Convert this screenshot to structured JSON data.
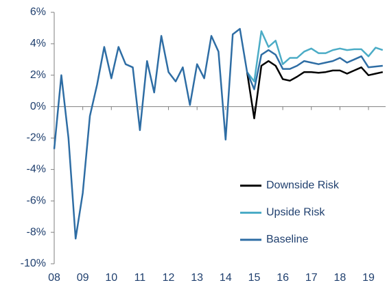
{
  "chart_data": {
    "type": "line",
    "x": [
      2008,
      2008.25,
      2008.5,
      2008.75,
      2009,
      2009.25,
      2009.5,
      2009.75,
      2010,
      2010.25,
      2010.5,
      2010.75,
      2011,
      2011.25,
      2011.5,
      2011.75,
      2012,
      2012.25,
      2012.5,
      2012.75,
      2013,
      2013.25,
      2013.5,
      2013.75,
      2014,
      2014.25,
      2014.5,
      2014.75,
      2015,
      2015.25,
      2015.5,
      2015.75,
      2016,
      2016.25,
      2016.5,
      2016.75,
      2017,
      2017.25,
      2017.5,
      2017.75,
      2018,
      2018.25,
      2018.5,
      2018.75,
      2019,
      2019.25,
      2019.5
    ],
    "series": [
      {
        "name": "Upside Risk",
        "color": "#4bacc6",
        "values": [
          null,
          null,
          null,
          null,
          null,
          null,
          null,
          null,
          null,
          null,
          null,
          null,
          null,
          null,
          null,
          null,
          null,
          null,
          null,
          null,
          null,
          null,
          null,
          null,
          null,
          null,
          null,
          2.2,
          1.6,
          4.8,
          3.8,
          4.2,
          2.7,
          3.1,
          3.1,
          3.5,
          3.7,
          3.4,
          3.4,
          3.6,
          3.7,
          3.6,
          3.65,
          3.65,
          3.2,
          3.75,
          3.6
        ]
      },
      {
        "name": "Downside Risk",
        "color": "#000000",
        "values": [
          null,
          null,
          null,
          null,
          null,
          null,
          null,
          null,
          null,
          null,
          null,
          null,
          null,
          null,
          null,
          null,
          null,
          null,
          null,
          null,
          null,
          null,
          null,
          null,
          null,
          null,
          null,
          2.2,
          -0.75,
          2.6,
          2.9,
          2.6,
          1.75,
          1.65,
          1.9,
          2.2,
          2.2,
          2.15,
          2.2,
          2.3,
          2.3,
          2.1,
          2.3,
          2.5,
          2.0,
          2.1,
          2.2
        ]
      },
      {
        "name": "Baseline",
        "color": "#2e6da4",
        "values": [
          -2.7,
          2.0,
          -2.0,
          -8.4,
          -5.5,
          -0.6,
          1.4,
          3.8,
          1.8,
          3.8,
          2.7,
          2.5,
          -1.5,
          2.9,
          0.9,
          4.5,
          2.2,
          1.6,
          2.5,
          0.1,
          2.7,
          1.8,
          4.5,
          3.5,
          -2.1,
          4.6,
          4.95,
          2.2,
          1.1,
          3.3,
          3.6,
          3.3,
          2.4,
          2.4,
          2.6,
          2.9,
          2.8,
          2.7,
          2.8,
          2.9,
          3.1,
          2.8,
          3.0,
          3.2,
          2.5,
          2.55,
          2.6
        ]
      }
    ],
    "legend_order": [
      "Downside Risk",
      "Upside Risk",
      "Baseline"
    ],
    "xlim": [
      2008,
      2019.6
    ],
    "xticks": [
      {
        "value": 2008,
        "label": "08"
      },
      {
        "value": 2009,
        "label": "09"
      },
      {
        "value": 2010,
        "label": "10"
      },
      {
        "value": 2011,
        "label": "11"
      },
      {
        "value": 2012,
        "label": "12"
      },
      {
        "value": 2013,
        "label": "13"
      },
      {
        "value": 2014,
        "label": "14"
      },
      {
        "value": 2015,
        "label": "15"
      },
      {
        "value": 2016,
        "label": "16"
      },
      {
        "value": 2017,
        "label": "17"
      },
      {
        "value": 2018,
        "label": "18"
      },
      {
        "value": 2019,
        "label": "19"
      }
    ],
    "ylim": [
      -10,
      6
    ],
    "yticks": [
      {
        "value": -10,
        "label": "-10%"
      },
      {
        "value": -8,
        "label": "-8%"
      },
      {
        "value": -6,
        "label": "-6%"
      },
      {
        "value": -4,
        "label": "-4%"
      },
      {
        "value": -2,
        "label": "-2%"
      },
      {
        "value": 0,
        "label": "0%"
      },
      {
        "value": 2,
        "label": "2%"
      },
      {
        "value": 4,
        "label": "4%"
      },
      {
        "value": 6,
        "label": "6%"
      }
    ],
    "legend": "lower right"
  }
}
